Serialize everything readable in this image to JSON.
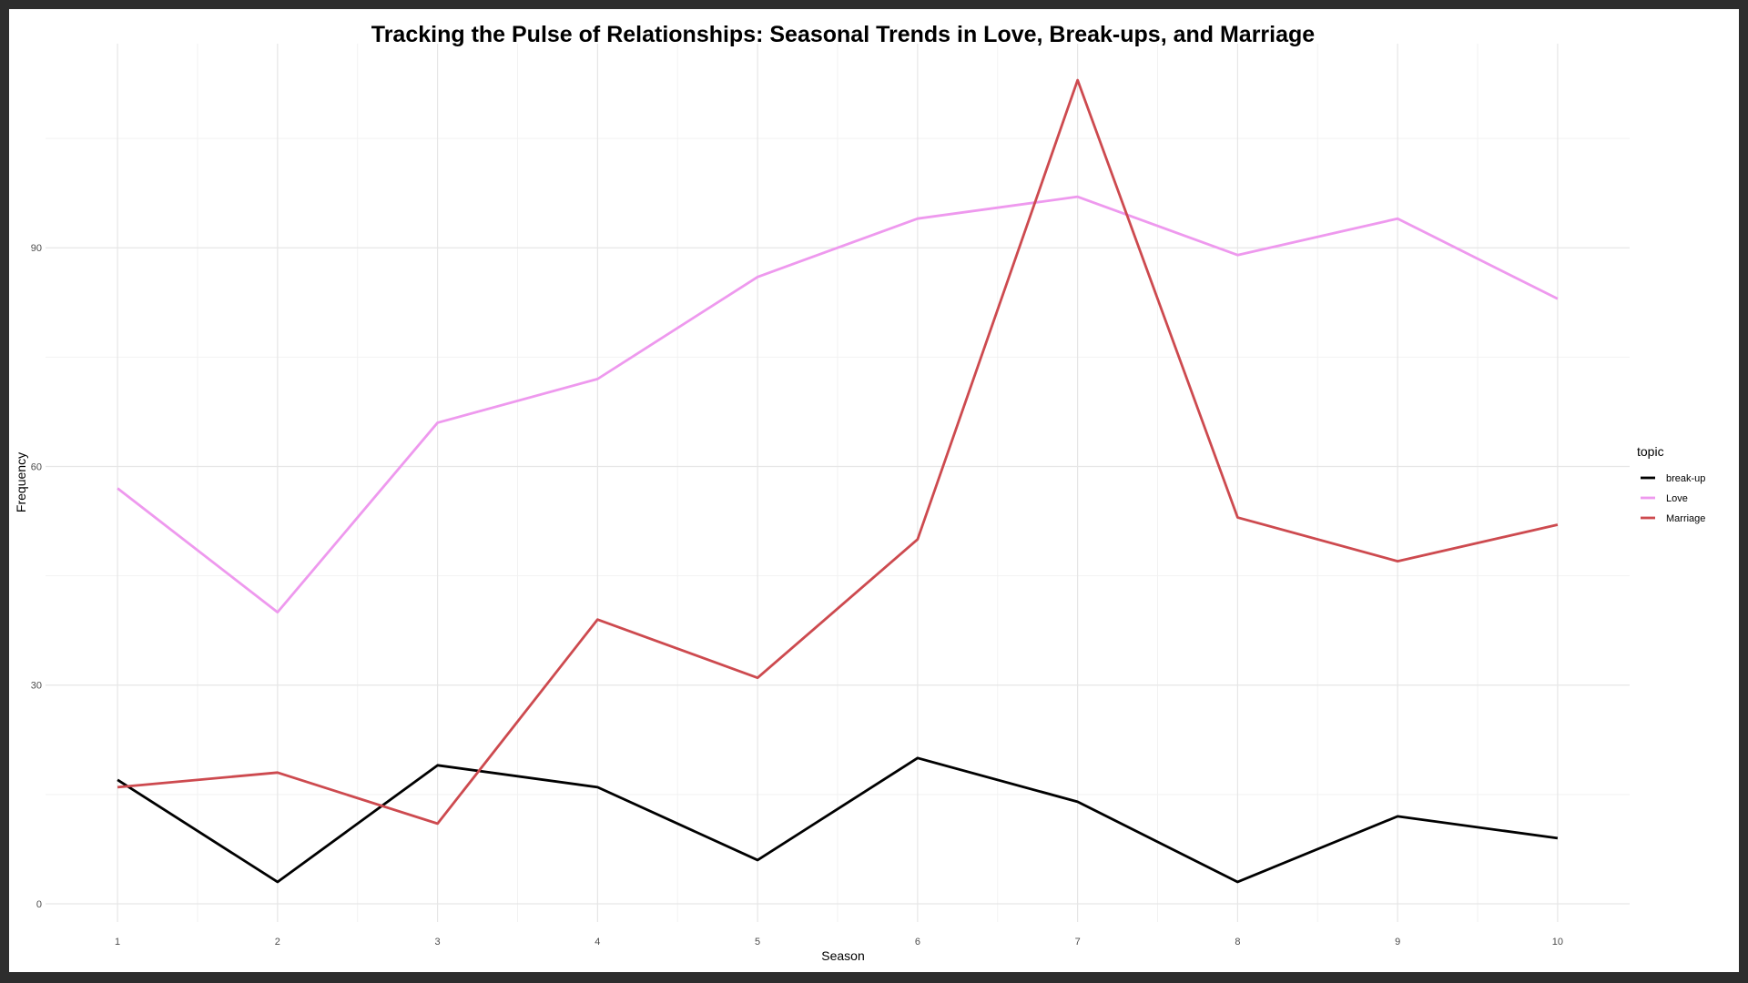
{
  "chart_data": {
    "type": "line",
    "title": "Tracking the Pulse of Relationships: Seasonal Trends in Love, Break-ups, and Marriage",
    "xlabel": "Season",
    "ylabel": "Frequency",
    "x": [
      1,
      2,
      3,
      4,
      5,
      6,
      7,
      8,
      9,
      10
    ],
    "xlim": [
      0.55,
      10.45
    ],
    "ylim": [
      -2.5,
      118
    ],
    "yticks": [
      0,
      30,
      60,
      90
    ],
    "grid": true,
    "legend": {
      "title": "topic",
      "position": "right"
    },
    "series": [
      {
        "name": "break-up",
        "color": "#000000",
        "values": [
          17,
          3,
          19,
          16,
          6,
          20,
          14,
          3,
          12,
          9
        ]
      },
      {
        "name": "Love",
        "color": "#ee99ee",
        "values": [
          57,
          40,
          66,
          72,
          86,
          94,
          97,
          89,
          94,
          83
        ]
      },
      {
        "name": "Marriage",
        "color": "#cd4a4f",
        "values": [
          16,
          18,
          11,
          39,
          31,
          50,
          113,
          53,
          47,
          52
        ]
      }
    ]
  }
}
